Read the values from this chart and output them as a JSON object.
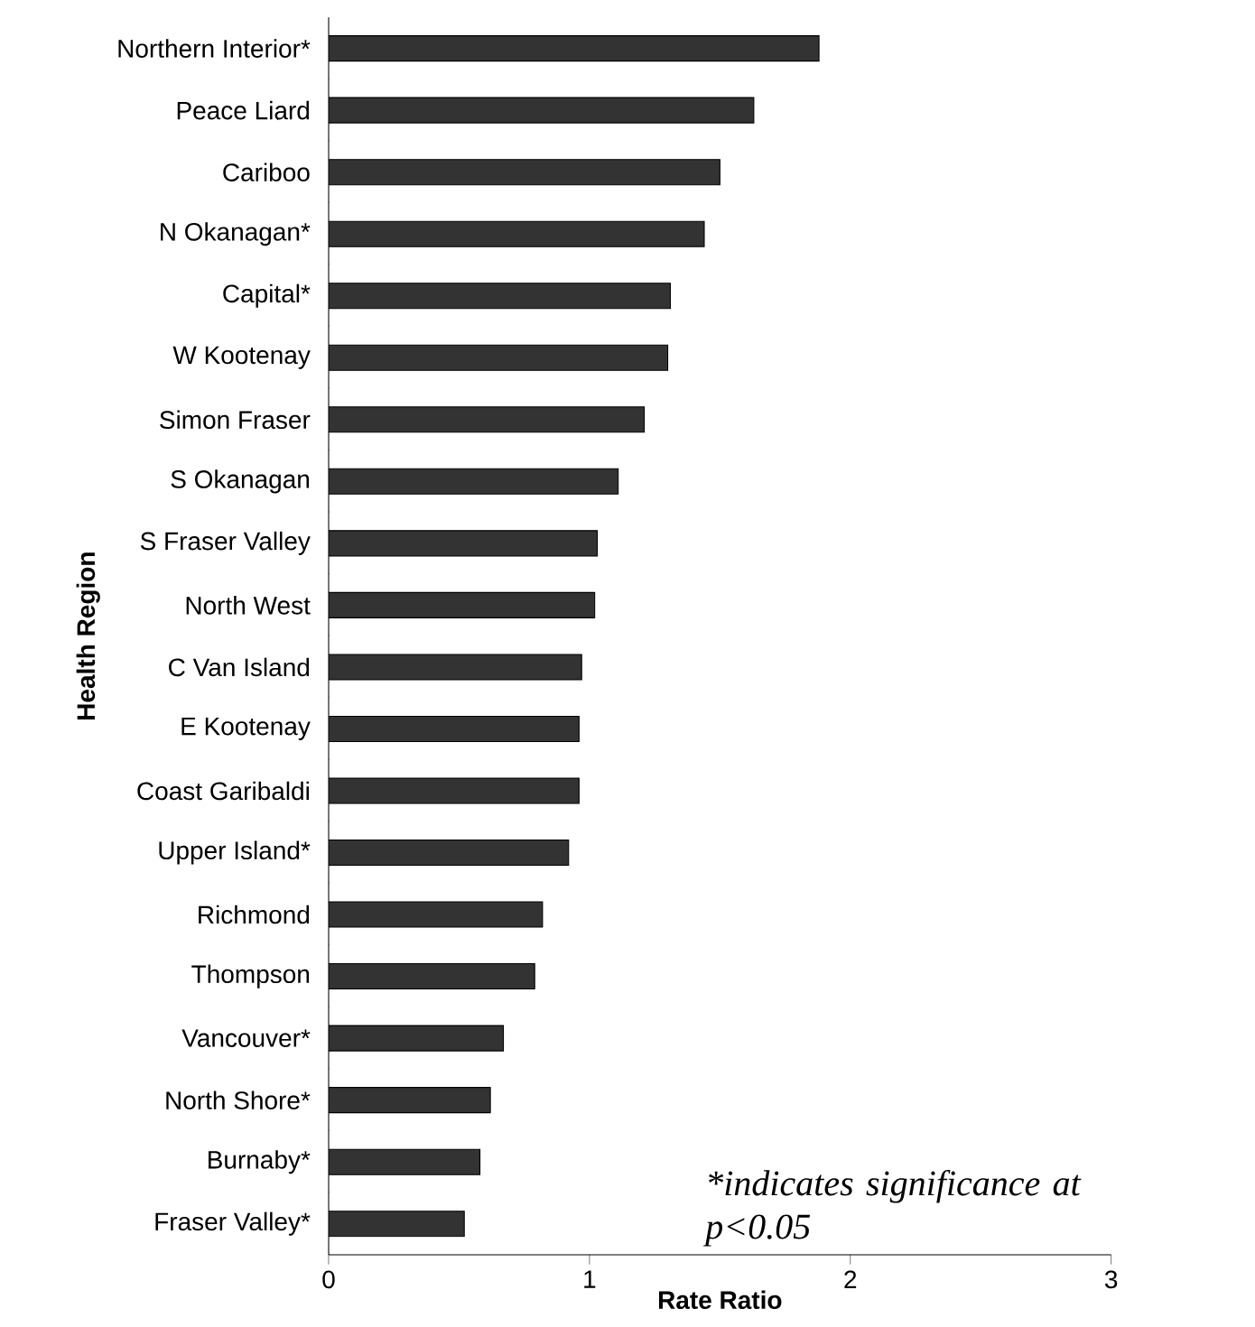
{
  "chart_data": {
    "type": "bar",
    "orientation": "horizontal",
    "xlabel": "Rate Ratio",
    "ylabel": "Health Region",
    "categories": [
      "Northern Interior*",
      "Peace Liard",
      "Cariboo",
      "N Okanagan*",
      "Capital*",
      "W Kootenay",
      "Simon Fraser",
      "S Okanagan",
      "S Fraser Valley",
      "North West",
      "C Van Island",
      "E Kootenay",
      "Coast Garibaldi",
      "Upper Island*",
      "Richmond",
      "Thompson",
      "Vancouver*",
      "North Shore*",
      "Burnaby*",
      "Fraser Valley*"
    ],
    "values": [
      1.88,
      1.63,
      1.5,
      1.44,
      1.31,
      1.3,
      1.21,
      1.11,
      1.03,
      1.02,
      0.97,
      0.96,
      0.96,
      0.92,
      0.82,
      0.79,
      0.67,
      0.62,
      0.58,
      0.52
    ],
    "color": "#333333",
    "xlim": [
      0,
      3
    ],
    "xticks": [
      0,
      1,
      2,
      3
    ],
    "grid": false,
    "annotations": [
      "*indicates significance at p<0.05"
    ]
  }
}
